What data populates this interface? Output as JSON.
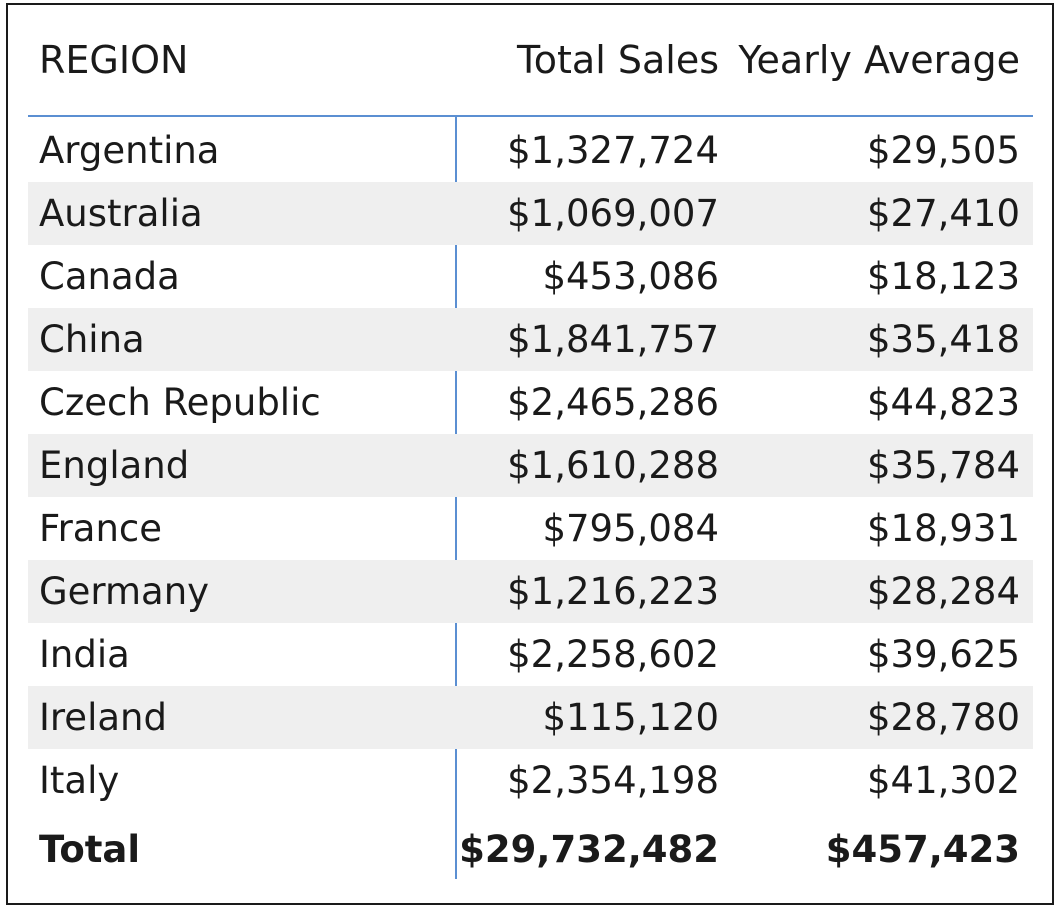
{
  "table": {
    "columns": [
      "REGION",
      "Total Sales",
      "Yearly Average"
    ],
    "rows": [
      {
        "region": "Argentina",
        "total_sales": "$1,327,724",
        "yearly_average": "$29,505"
      },
      {
        "region": "Australia",
        "total_sales": "$1,069,007",
        "yearly_average": "$27,410"
      },
      {
        "region": "Canada",
        "total_sales": "$453,086",
        "yearly_average": "$18,123"
      },
      {
        "region": "China",
        "total_sales": "$1,841,757",
        "yearly_average": "$35,418"
      },
      {
        "region": "Czech Republic",
        "total_sales": "$2,465,286",
        "yearly_average": "$44,823"
      },
      {
        "region": "England",
        "total_sales": "$1,610,288",
        "yearly_average": "$35,784"
      },
      {
        "region": "France",
        "total_sales": "$795,084",
        "yearly_average": "$18,931"
      },
      {
        "region": "Germany",
        "total_sales": "$1,216,223",
        "yearly_average": "$28,284"
      },
      {
        "region": "India",
        "total_sales": "$2,258,602",
        "yearly_average": "$39,625"
      },
      {
        "region": "Ireland",
        "total_sales": "$115,120",
        "yearly_average": "$28,780"
      },
      {
        "region": "Italy",
        "total_sales": "$2,354,198",
        "yearly_average": "$41,302"
      }
    ],
    "total": {
      "label": "Total",
      "total_sales": "$29,732,482",
      "yearly_average": "$457,423"
    },
    "colors": {
      "accent_line": "#5b8fd2",
      "alt_row": "#efefef",
      "text": "#1a1a1a"
    }
  }
}
